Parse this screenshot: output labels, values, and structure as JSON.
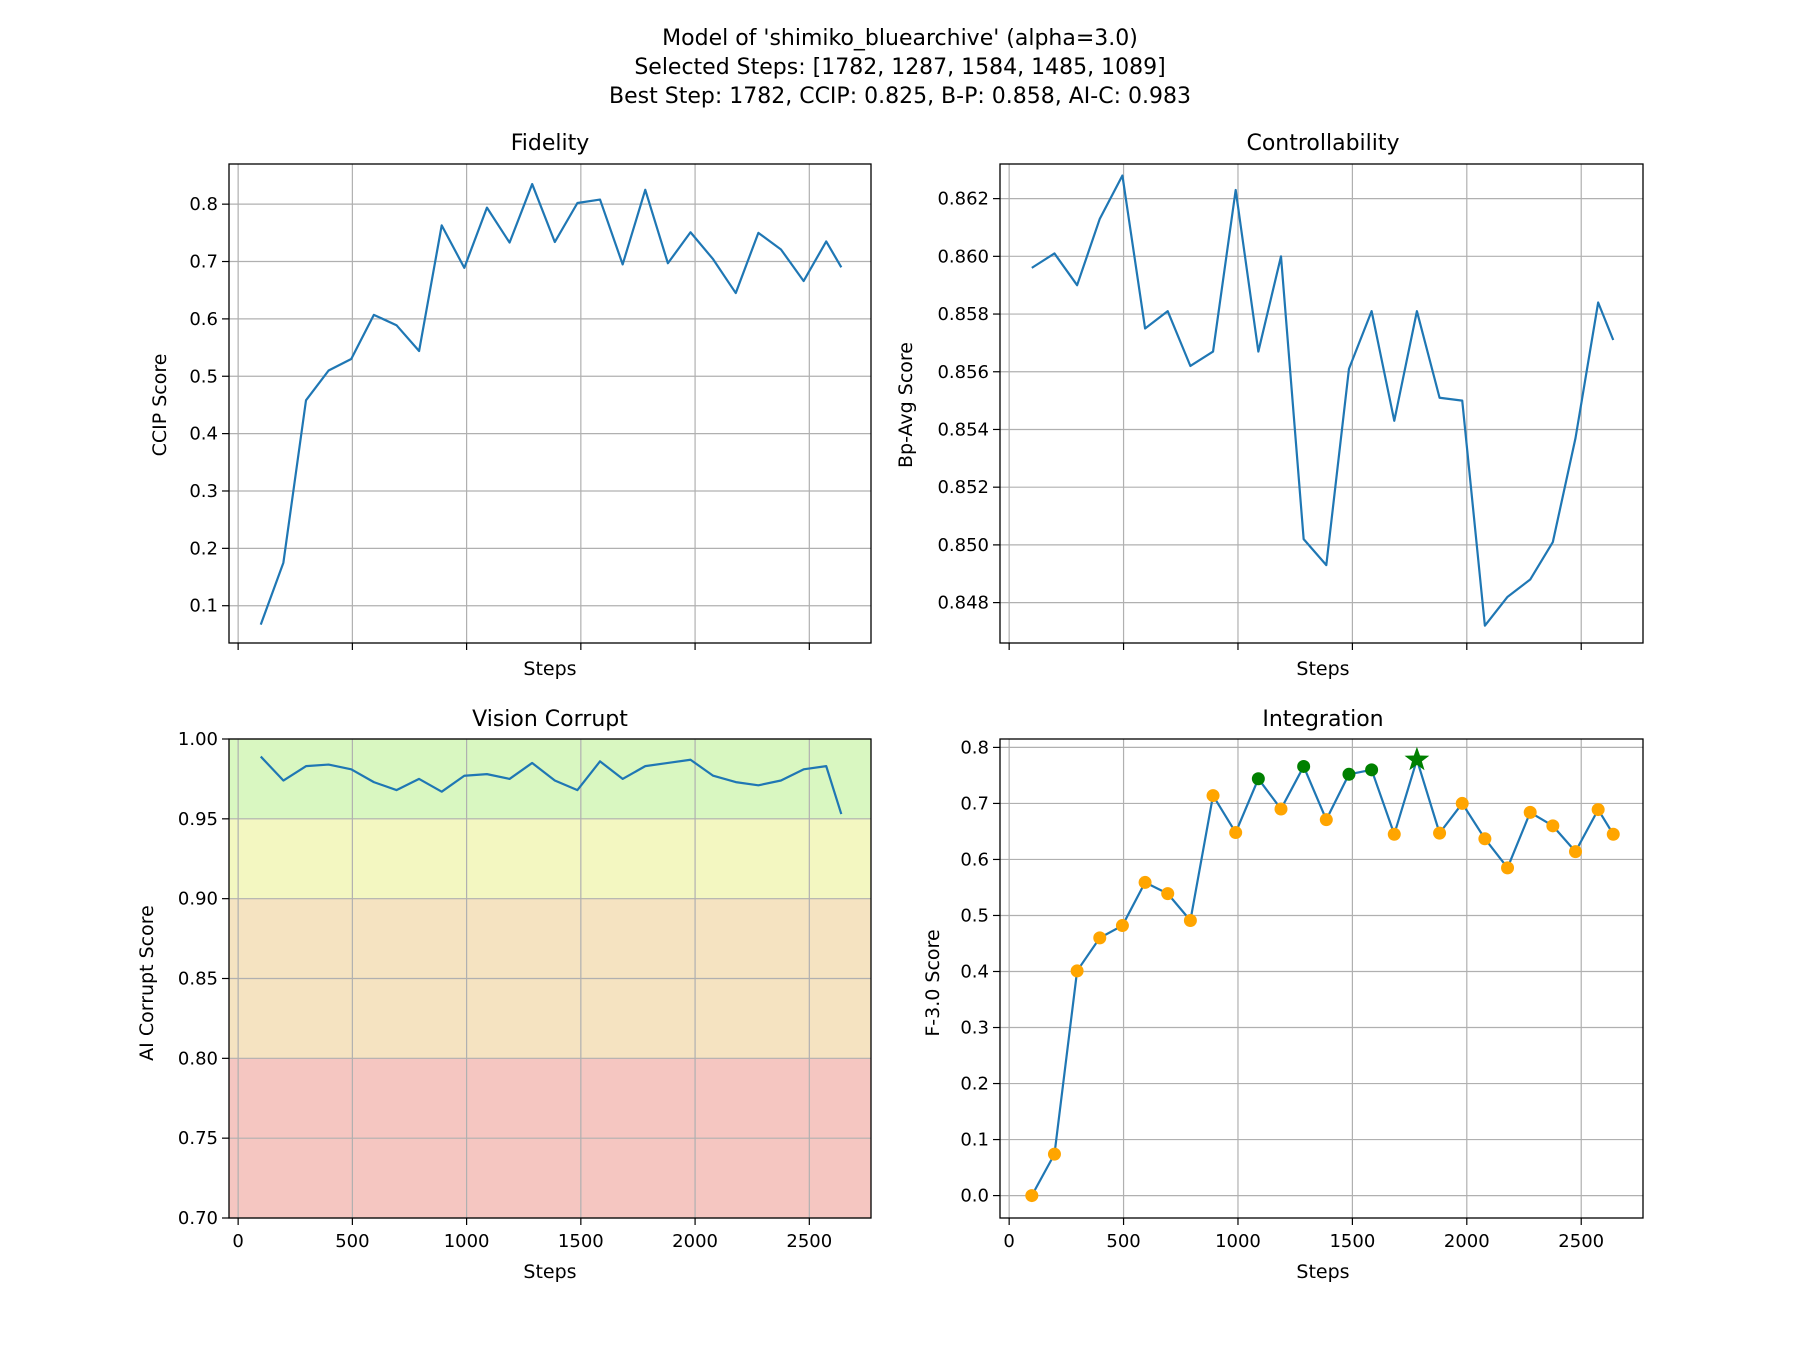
{
  "figure": {
    "title_lines": [
      "Model of 'shimiko_bluearchive' (alpha=3.0)",
      "Selected Steps: [1782, 1287, 1584, 1485, 1089]",
      "Best Step: 1782, CCIP: 0.825, B-P: 0.858, AI-C: 0.983"
    ]
  },
  "colors": {
    "line": "#1f77b4",
    "grid": "#b0b0b0",
    "marker_default": "#ffa500",
    "marker_selected": "#008000",
    "marker_best": "#008000",
    "band_excellent": "#d9f7c1",
    "band_good": "#f3f7c1",
    "band_fair": "#f5e3c1",
    "band_poor": "#f5c6c1"
  },
  "chart_data": [
    {
      "id": "fidelity",
      "type": "line",
      "title": "Fidelity",
      "xlabel": "Steps",
      "ylabel": "CCIP Score",
      "show_x_tick_labels": false,
      "xlim": [
        -40,
        2770
      ],
      "ylim": [
        0.035,
        0.87
      ],
      "xticks": [
        0,
        500,
        1000,
        1500,
        2000,
        2500
      ],
      "yticks": [
        0.1,
        0.2,
        0.3,
        0.4,
        0.5,
        0.6,
        0.7,
        0.8
      ],
      "ytick_labels": [
        "0.1",
        "0.2",
        "0.3",
        "0.4",
        "0.5",
        "0.6",
        "0.7",
        "0.8"
      ],
      "grid": true,
      "series": [
        {
          "x": [
            99,
            198,
            297,
            396,
            495,
            594,
            693,
            792,
            891,
            990,
            1089,
            1188,
            1287,
            1386,
            1485,
            1584,
            1683,
            1782,
            1881,
            1980,
            2079,
            2178,
            2277,
            2376,
            2475,
            2574,
            2640
          ],
          "values": [
            0.067,
            0.175,
            0.458,
            0.51,
            0.53,
            0.607,
            0.589,
            0.544,
            0.763,
            0.689,
            0.794,
            0.733,
            0.835,
            0.734,
            0.802,
            0.808,
            0.695,
            0.825,
            0.697,
            0.751,
            0.704,
            0.645,
            0.75,
            0.721,
            0.666,
            0.735,
            0.69
          ]
        }
      ]
    },
    {
      "id": "controllability",
      "type": "line",
      "title": "Controllability",
      "xlabel": "Steps",
      "ylabel": "Bp-Avg Score",
      "show_x_tick_labels": false,
      "xlim": [
        -40,
        2770
      ],
      "ylim": [
        0.8466,
        0.8632
      ],
      "xticks": [
        0,
        500,
        1000,
        1500,
        2000,
        2500
      ],
      "yticks": [
        0.848,
        0.85,
        0.852,
        0.854,
        0.856,
        0.858,
        0.86,
        0.862
      ],
      "ytick_labels": [
        "0.848",
        "0.850",
        "0.852",
        "0.854",
        "0.856",
        "0.858",
        "0.860",
        "0.862"
      ],
      "grid": true,
      "series": [
        {
          "x": [
            99,
            198,
            297,
            396,
            495,
            594,
            693,
            792,
            891,
            990,
            1089,
            1188,
            1287,
            1386,
            1485,
            1584,
            1683,
            1782,
            1881,
            1980,
            2079,
            2178,
            2277,
            2376,
            2475,
            2574,
            2640
          ],
          "values": [
            0.8596,
            0.8601,
            0.859,
            0.8613,
            0.8628,
            0.8575,
            0.8581,
            0.8562,
            0.8567,
            0.8623,
            0.8567,
            0.86,
            0.8502,
            0.8493,
            0.8561,
            0.8581,
            0.8543,
            0.8581,
            0.8551,
            0.855,
            0.8472,
            0.8482,
            0.8488,
            0.8501,
            0.8537,
            0.8584,
            0.8571
          ]
        }
      ]
    },
    {
      "id": "vision-corrupt",
      "type": "line",
      "title": "Vision Corrupt",
      "xlabel": "Steps",
      "ylabel": "AI Corrupt Score",
      "show_x_tick_labels": true,
      "xlim": [
        -40,
        2770
      ],
      "ylim": [
        0.7,
        1.0
      ],
      "xticks": [
        0,
        500,
        1000,
        1500,
        2000,
        2500
      ],
      "xtick_labels": [
        "0",
        "500",
        "1000",
        "1500",
        "2000",
        "2500"
      ],
      "yticks": [
        0.7,
        0.75,
        0.8,
        0.85,
        0.9,
        0.95,
        1.0
      ],
      "ytick_labels": [
        "0.70",
        "0.75",
        "0.80",
        "0.85",
        "0.90",
        "0.95",
        "1.00"
      ],
      "grid": true,
      "bands": [
        {
          "from": 0.95,
          "to": 1.0,
          "color_key": "band_excellent"
        },
        {
          "from": 0.9,
          "to": 0.95,
          "color_key": "band_good"
        },
        {
          "from": 0.8,
          "to": 0.9,
          "color_key": "band_fair"
        },
        {
          "from": 0.7,
          "to": 0.8,
          "color_key": "band_poor"
        }
      ],
      "series": [
        {
          "x": [
            99,
            198,
            297,
            396,
            495,
            594,
            693,
            792,
            891,
            990,
            1089,
            1188,
            1287,
            1386,
            1485,
            1584,
            1683,
            1782,
            1881,
            1980,
            2079,
            2178,
            2277,
            2376,
            2475,
            2574,
            2640
          ],
          "values": [
            0.989,
            0.974,
            0.983,
            0.984,
            0.981,
            0.973,
            0.968,
            0.975,
            0.967,
            0.977,
            0.978,
            0.975,
            0.985,
            0.974,
            0.968,
            0.986,
            0.975,
            0.983,
            0.985,
            0.987,
            0.977,
            0.973,
            0.971,
            0.974,
            0.981,
            0.983,
            0.953
          ]
        }
      ]
    },
    {
      "id": "integration",
      "type": "line",
      "title": "Integration",
      "xlabel": "Steps",
      "ylabel": "F-3.0 Score",
      "show_x_tick_labels": true,
      "xlim": [
        -40,
        2770
      ],
      "ylim": [
        -0.04,
        0.815
      ],
      "xticks": [
        0,
        500,
        1000,
        1500,
        2000,
        2500
      ],
      "xtick_labels": [
        "0",
        "500",
        "1000",
        "1500",
        "2000",
        "2500"
      ],
      "yticks": [
        0.0,
        0.1,
        0.2,
        0.3,
        0.4,
        0.5,
        0.6,
        0.7,
        0.8
      ],
      "ytick_labels": [
        "0.0",
        "0.1",
        "0.2",
        "0.3",
        "0.4",
        "0.5",
        "0.6",
        "0.7",
        "0.8"
      ],
      "grid": true,
      "selected_steps": [
        1089,
        1287,
        1485,
        1584
      ],
      "best_step": 1782,
      "series": [
        {
          "x": [
            99,
            198,
            297,
            396,
            495,
            594,
            693,
            792,
            891,
            990,
            1089,
            1188,
            1287,
            1386,
            1485,
            1584,
            1683,
            1782,
            1881,
            1980,
            2079,
            2178,
            2277,
            2376,
            2475,
            2574,
            2640
          ],
          "values": [
            0.0,
            0.074,
            0.401,
            0.46,
            0.482,
            0.559,
            0.539,
            0.491,
            0.714,
            0.648,
            0.744,
            0.69,
            0.766,
            0.671,
            0.752,
            0.76,
            0.645,
            0.778,
            0.647,
            0.7,
            0.637,
            0.585,
            0.684,
            0.66,
            0.614,
            0.689,
            0.645
          ]
        }
      ]
    }
  ]
}
